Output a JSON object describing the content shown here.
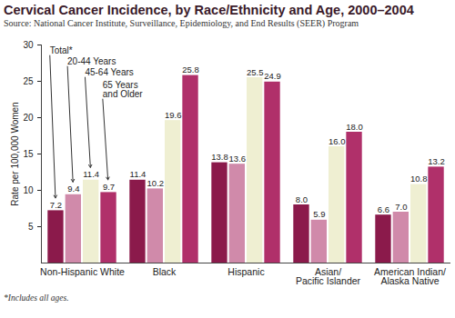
{
  "chart_data": {
    "type": "bar",
    "title": "Cervical Cancer Incidence, by Race/Ethnicity and Age, 2000–2004",
    "subtitle": "Source: National Cancer Institute, Surveillance, Epidemiology, and End Results (SEER) Program",
    "y_label": "Rate per 100,000 Women",
    "footnote": "*Includes all ages.",
    "categories": [
      "Non-Hispanic White",
      "Black",
      "Hispanic",
      "Asian/Pacific Islander",
      "American Indian/Alaska Native"
    ],
    "series": [
      {
        "name": "Total*",
        "color": "#8b1a4b",
        "values": [
          7.2,
          11.4,
          13.8,
          8.0,
          6.6
        ],
        "value_labels": [
          "7.2",
          "11.4",
          "13.8",
          "8.0",
          "6.6"
        ]
      },
      {
        "name": "20-44 Years",
        "color": "#d08aaa",
        "values": [
          9.4,
          10.2,
          13.6,
          5.9,
          7.0
        ],
        "value_labels": [
          "9.4",
          "10.2",
          "13.6",
          "5.9",
          "7.0"
        ]
      },
      {
        "name": "45-64 Years",
        "color": "#efefd2",
        "values": [
          11.4,
          19.6,
          25.5,
          16.0,
          10.8
        ],
        "value_labels": [
          "11.4",
          "19.6",
          "25.5",
          "16.0",
          "10.8"
        ]
      },
      {
        "name": "65 Years and Older",
        "color": "#b0306a",
        "values": [
          9.7,
          25.8,
          24.9,
          18.0,
          13.2
        ],
        "value_labels": [
          "9.7",
          "25.8",
          "24.9",
          "18.0",
          "13.2"
        ]
      }
    ],
    "ylim": [
      0,
      30
    ],
    "yticks": [
      5,
      10,
      15,
      20,
      25,
      30
    ],
    "grid": false,
    "data_labels": true
  }
}
